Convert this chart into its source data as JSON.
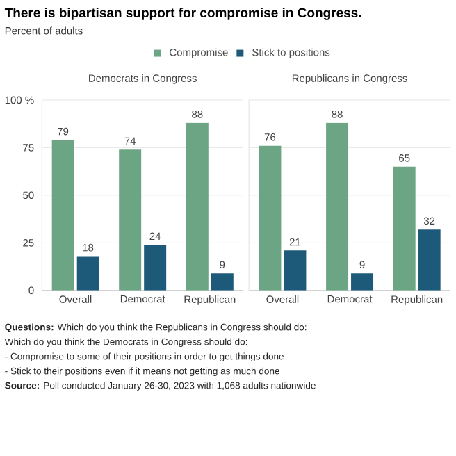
{
  "chart_data": [
    {
      "type": "bar",
      "title": "Democrats in Congress",
      "categories": [
        "Overall",
        "Democrat",
        "Republican"
      ],
      "series": [
        {
          "name": "Compromise",
          "color": "#6ba583",
          "values": [
            79,
            74,
            88
          ]
        },
        {
          "name": "Stick to positions",
          "color": "#1d5a7a",
          "values": [
            18,
            24,
            9
          ]
        }
      ],
      "ylim": [
        0,
        100
      ],
      "yticks": [
        0,
        25,
        50,
        75,
        {
          "value": 100,
          "label": "100 %"
        }
      ],
      "grid": "y",
      "legend": "top",
      "data_labels": true,
      "annotations": [
        "There is bipartisan support for compromise in Congress.",
        "Percent of adults",
        "**Questions:** Which do you think the Republicans in Congress should do:",
        "Which do you think the Democrats in Congress should do:",
        "- Compromise to some of their positions in order to get things done",
        "- Stick to their positions even if it means not getting as much done",
        "**Source:** Poll conducted January 26-30, 2023 with 1,068 adults nationwide"
      ]
    },
    {
      "type": "bar",
      "title": "Republicans in Congress",
      "categories": [
        "Overall",
        "Democrat",
        "Republican"
      ],
      "series": [
        {
          "color": "#6ba583",
          "values": [
            76,
            88,
            65
          ]
        },
        {
          "color": "#1d5a7a",
          "values": [
            21,
            9,
            32
          ]
        }
      ],
      "ylim": [
        0,
        100
      ],
      "yticks": [
        0,
        25,
        50,
        75,
        100
      ],
      "grid": "y",
      "tick_labels": "x",
      "data_labels": true
    }
  ]
}
